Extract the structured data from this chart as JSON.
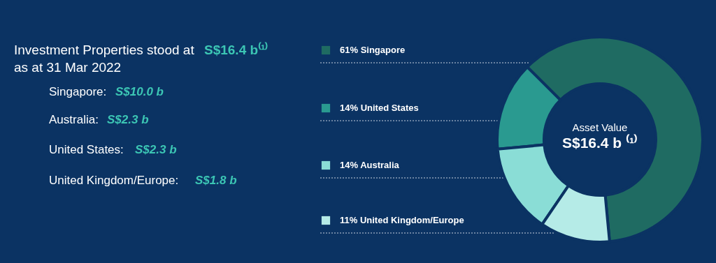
{
  "chart_data": {
    "type": "donut",
    "categories": [
      "Singapore",
      "United States",
      "Australia",
      "United Kingdom/Europe"
    ],
    "values": [
      61,
      14,
      14,
      11
    ],
    "value_labels": [
      "61%",
      "14%",
      "14%",
      "11%"
    ],
    "colors": [
      "#1f6b62",
      "#2a9a90",
      "#8addd6",
      "#b5ebe7"
    ],
    "legend": "left",
    "annotations": [
      "Investment Properties stood at ",
      "S$16.4 b⁽¹⁾",
      "as at 31 Mar 2022",
      "Singapore: ",
      "S$10.0 b",
      "Australia: ",
      "S$2.3 b",
      "United States: ",
      "S$2.3 b",
      "United Kingdom/Europe: ",
      "S$1.8 b",
      "Asset Value",
      "S$16.4 b ⁽¹⁾"
    ]
  }
}
